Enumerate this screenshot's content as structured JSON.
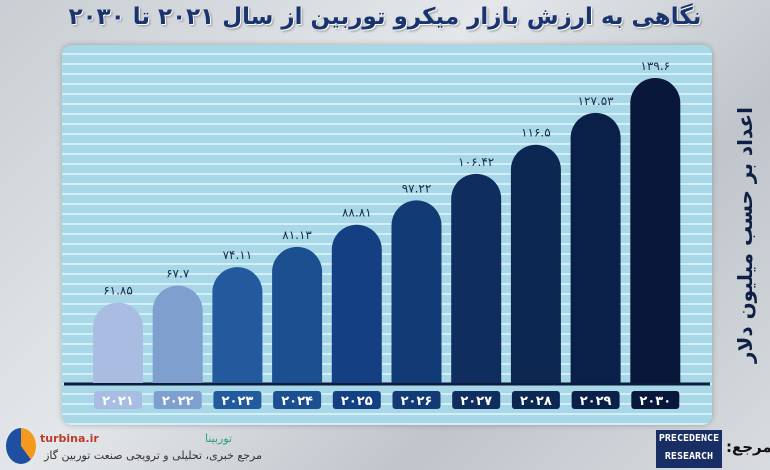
{
  "chart_data": {
    "type": "bar",
    "title": "نگاهی به ارزش بازار میکرو توربین از سال ۲۰۲۱ تا ۲۰۳۰",
    "ylabel": "اعداد بر حسب میلیون دلار",
    "categories": [
      "۲۰۲۱",
      "۲۰۲۲",
      "۲۰۲۳",
      "۲۰۲۴",
      "۲۰۲۵",
      "۲۰۲۶",
      "۲۰۲۷",
      "۲۰۲۸",
      "۲۰۲۹",
      "۲۰۳۰"
    ],
    "values": [
      61.85,
      67.7,
      74.11,
      81.13,
      88.81,
      97.22,
      106.42,
      116.5,
      127.53,
      139.6
    ],
    "value_labels": [
      "۶۱.۸۵",
      "۶۷.۷",
      "۷۴.۱۱",
      "۸۱.۱۳",
      "۸۸.۸۱",
      "۹۷.۲۲",
      "۱۰۶.۴۲",
      "۱۱۶.۵",
      "۱۲۷.۵۳",
      "۱۳۹.۶"
    ],
    "colors": [
      "#a9bde2",
      "#7f9fcf",
      "#235a9e",
      "#1c4f90",
      "#143f82",
      "#123a74",
      "#0f2d5e",
      "#0d2753",
      "#0b2048",
      "#09183a"
    ],
    "ylim": [
      34,
      145
    ],
    "grid": true
  },
  "footer": {
    "site": "turbina.ir",
    "brand": "توربینا",
    "tagline": "مرجع خبری، تحلیلی و ترویجی صنعت توربین گاز",
    "source_label": "مرجع:",
    "source_logo": [
      "PRECEDENCE",
      "RESEARCH"
    ]
  }
}
